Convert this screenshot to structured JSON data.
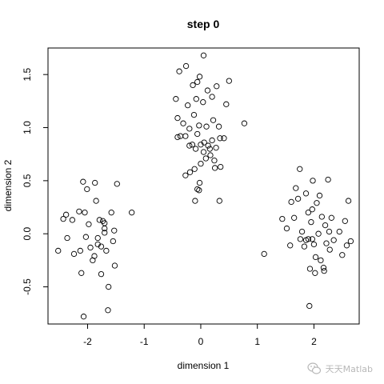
{
  "chart_data": {
    "type": "scatter",
    "title": "step 0",
    "xlabel": "dimension 1",
    "ylabel": "dimension 2",
    "xlim": [
      -2.7,
      2.8
    ],
    "ylim": [
      -0.85,
      1.75
    ],
    "x_ticks": [
      -2,
      -1,
      0,
      1,
      2
    ],
    "y_ticks": [
      -0.5,
      0.0,
      0.5,
      1.0,
      1.5
    ],
    "x_tick_labels": [
      "-2",
      "-1",
      "0",
      "1",
      "2"
    ],
    "y_tick_labels": [
      "-0.5",
      "0.0",
      "0.5",
      "1.0",
      "1.5"
    ],
    "grid": false,
    "legend": "none",
    "marker": "open-circle",
    "color": "#000000",
    "points": [
      [
        -2.52,
        -0.16
      ],
      [
        -2.43,
        0.14
      ],
      [
        -2.38,
        0.18
      ],
      [
        -2.36,
        -0.04
      ],
      [
        -2.27,
        0.13
      ],
      [
        -2.24,
        -0.19
      ],
      [
        -2.15,
        0.21
      ],
      [
        -2.13,
        -0.16
      ],
      [
        -2.11,
        -0.37
      ],
      [
        -2.08,
        0.49
      ],
      [
        -2.05,
        0.2
      ],
      [
        -2.03,
        -0.03
      ],
      [
        -2.01,
        0.42
      ],
      [
        -1.95,
        -0.13
      ],
      [
        -1.91,
        -0.25
      ],
      [
        -1.88,
        -0.21
      ],
      [
        -1.85,
        0.31
      ],
      [
        -1.82,
        -0.04
      ],
      [
        -1.79,
        0.13
      ],
      [
        -1.76,
        -0.12
      ],
      [
        -1.73,
        0.12
      ],
      [
        -1.7,
        0.05
      ],
      [
        -1.7,
        0.01
      ],
      [
        -1.67,
        -0.16
      ],
      [
        -1.63,
        -0.5
      ],
      [
        -1.58,
        0.2
      ],
      [
        -1.55,
        -0.07
      ],
      [
        -1.52,
        -0.3
      ],
      [
        -1.48,
        0.47
      ],
      [
        -1.64,
        -0.72
      ],
      [
        -2.07,
        -0.78
      ],
      [
        -1.87,
        0.48
      ],
      [
        -1.76,
        -0.38
      ],
      [
        -1.53,
        0.03
      ],
      [
        -1.22,
        0.2
      ],
      [
        -1.7,
        0.1
      ],
      [
        -1.82,
        -0.1
      ],
      [
        -1.98,
        0.09
      ],
      [
        -0.26,
        1.58
      ],
      [
        -0.14,
        1.4
      ],
      [
        -0.06,
        1.43
      ],
      [
        0.05,
        1.68
      ],
      [
        -0.38,
        1.53
      ],
      [
        -0.02,
        1.48
      ],
      [
        0.12,
        1.35
      ],
      [
        -0.44,
        1.27
      ],
      [
        -0.23,
        1.21
      ],
      [
        -0.08,
        1.27
      ],
      [
        0.04,
        1.24
      ],
      [
        0.2,
        1.29
      ],
      [
        0.28,
        1.39
      ],
      [
        0.5,
        1.44
      ],
      [
        0.45,
        1.22
      ],
      [
        -0.41,
        1.09
      ],
      [
        -0.31,
        1.04
      ],
      [
        -0.2,
        0.99
      ],
      [
        -0.12,
        1.12
      ],
      [
        -0.03,
        1.02
      ],
      [
        0.1,
        1.01
      ],
      [
        0.22,
        1.07
      ],
      [
        0.32,
        1.01
      ],
      [
        0.77,
        1.04
      ],
      [
        -0.41,
        0.91
      ],
      [
        -0.36,
        0.92
      ],
      [
        -0.27,
        0.92
      ],
      [
        -0.2,
        0.83
      ],
      [
        -0.15,
        0.84
      ],
      [
        -0.09,
        0.8
      ],
      [
        0.0,
        0.84
      ],
      [
        0.06,
        0.86
      ],
      [
        0.13,
        0.83
      ],
      [
        0.2,
        0.88
      ],
      [
        0.27,
        0.81
      ],
      [
        0.34,
        0.9
      ],
      [
        0.41,
        0.9
      ],
      [
        -0.06,
        0.94
      ],
      [
        0.05,
        0.77
      ],
      [
        0.09,
        0.71
      ],
      [
        0.17,
        0.74
      ],
      [
        0.24,
        0.69
      ],
      [
        0.35,
        0.63
      ],
      [
        -0.27,
        0.55
      ],
      [
        -0.19,
        0.58
      ],
      [
        -0.11,
        0.61
      ],
      [
        -0.06,
        0.42
      ],
      [
        -0.02,
        0.48
      ],
      [
        0.25,
        0.62
      ],
      [
        0.33,
        0.31
      ],
      [
        -0.1,
        0.31
      ],
      [
        -0.03,
        0.41
      ],
      [
        0.0,
        0.66
      ],
      [
        0.16,
        0.8
      ],
      [
        1.12,
        -0.19
      ],
      [
        1.44,
        0.14
      ],
      [
        1.52,
        0.05
      ],
      [
        1.58,
        -0.11
      ],
      [
        1.6,
        0.3
      ],
      [
        1.65,
        0.15
      ],
      [
        1.68,
        0.43
      ],
      [
        1.72,
        0.33
      ],
      [
        1.75,
        0.61
      ],
      [
        1.79,
        0.02
      ],
      [
        1.83,
        -0.12
      ],
      [
        1.86,
        0.38
      ],
      [
        1.86,
        -0.06
      ],
      [
        1.9,
        0.2
      ],
      [
        1.93,
        -0.33
      ],
      [
        1.95,
        0.11
      ],
      [
        1.97,
        -0.05
      ],
      [
        2.0,
        -0.1
      ],
      [
        2.02,
        -0.37
      ],
      [
        2.05,
        0.29
      ],
      [
        2.08,
        0.0
      ],
      [
        2.1,
        0.36
      ],
      [
        2.12,
        -0.25
      ],
      [
        2.14,
        0.16
      ],
      [
        2.17,
        -0.32
      ],
      [
        2.2,
        0.08
      ],
      [
        2.22,
        -0.09
      ],
      [
        2.25,
        0.51
      ],
      [
        2.28,
        -0.15
      ],
      [
        2.31,
        0.15
      ],
      [
        2.35,
        -0.06
      ],
      [
        2.45,
        0.02
      ],
      [
        2.5,
        -0.2
      ],
      [
        2.55,
        0.12
      ],
      [
        2.58,
        -0.11
      ],
      [
        2.61,
        0.31
      ],
      [
        2.65,
        -0.07
      ],
      [
        1.92,
        -0.68
      ],
      [
        1.97,
        0.23
      ],
      [
        2.18,
        -0.35
      ],
      [
        1.9,
        -0.05
      ],
      [
        2.03,
        -0.22
      ],
      [
        2.27,
        0.02
      ],
      [
        1.76,
        -0.05
      ],
      [
        1.98,
        0.5
      ]
    ]
  },
  "watermark": {
    "text": "天天Matlab"
  }
}
